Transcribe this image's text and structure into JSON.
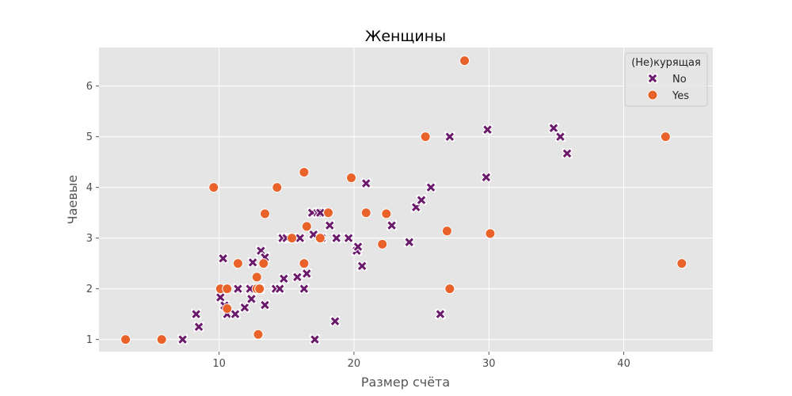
{
  "chart_data": {
    "type": "scatter",
    "title": "Женщины",
    "xlabel": "Размер счёта",
    "ylabel": "Чаевые",
    "xlim": [
      1.1,
      46.6
    ],
    "ylim": [
      0.76,
      6.76
    ],
    "xticks": [
      10,
      20,
      30,
      40
    ],
    "yticks": [
      1,
      2,
      3,
      4,
      5,
      6
    ],
    "grid": true,
    "legend": {
      "title": "(Не)курящая",
      "placement": "top-right"
    },
    "series": [
      {
        "name": "No",
        "marker": "x",
        "color": "#6b1a6b",
        "points": [
          [
            7.3,
            1.0
          ],
          [
            8.3,
            1.5
          ],
          [
            8.5,
            1.25
          ],
          [
            10.1,
            1.83
          ],
          [
            10.3,
            2.6
          ],
          [
            10.4,
            1.67
          ],
          [
            10.6,
            1.5
          ],
          [
            11.2,
            1.5
          ],
          [
            11.4,
            2.0
          ],
          [
            11.9,
            1.63
          ],
          [
            12.3,
            2.0
          ],
          [
            12.4,
            1.8
          ],
          [
            12.5,
            2.52
          ],
          [
            12.9,
            2.0
          ],
          [
            13.0,
            2.0
          ],
          [
            13.1,
            2.75
          ],
          [
            13.4,
            1.68
          ],
          [
            13.4,
            2.62
          ],
          [
            14.2,
            2.0
          ],
          [
            14.5,
            2.0
          ],
          [
            14.7,
            3.0
          ],
          [
            14.8,
            2.2
          ],
          [
            15.0,
            3.0
          ],
          [
            15.8,
            2.23
          ],
          [
            16.0,
            3.0
          ],
          [
            16.3,
            2.0
          ],
          [
            16.5,
            2.3
          ],
          [
            16.9,
            3.5
          ],
          [
            17.0,
            3.07
          ],
          [
            17.1,
            1.0
          ],
          [
            17.3,
            3.5
          ],
          [
            17.5,
            3.5
          ],
          [
            17.6,
            3.0
          ],
          [
            18.2,
            3.25
          ],
          [
            18.6,
            1.36
          ],
          [
            18.7,
            3.0
          ],
          [
            19.6,
            3.0
          ],
          [
            20.2,
            2.75
          ],
          [
            20.3,
            2.83
          ],
          [
            20.6,
            2.45
          ],
          [
            20.9,
            4.08
          ],
          [
            22.8,
            3.25
          ],
          [
            24.1,
            2.92
          ],
          [
            24.6,
            3.61
          ],
          [
            25.0,
            3.75
          ],
          [
            25.7,
            4.0
          ],
          [
            26.4,
            1.5
          ],
          [
            27.1,
            5.0
          ],
          [
            29.8,
            4.2
          ],
          [
            29.9,
            5.14
          ],
          [
            34.8,
            5.17
          ],
          [
            35.3,
            5.0
          ],
          [
            35.8,
            4.67
          ]
        ]
      },
      {
        "name": "Yes",
        "marker": "o",
        "color": "#e8622a",
        "points": [
          [
            3.07,
            1.0
          ],
          [
            5.75,
            1.0
          ],
          [
            9.6,
            4.0
          ],
          [
            10.1,
            2.0
          ],
          [
            10.6,
            1.61
          ],
          [
            10.6,
            2.0
          ],
          [
            11.4,
            2.5
          ],
          [
            12.8,
            2.0
          ],
          [
            12.8,
            2.23
          ],
          [
            12.9,
            1.1
          ],
          [
            13.0,
            2.0
          ],
          [
            13.3,
            2.5
          ],
          [
            13.4,
            3.48
          ],
          [
            14.3,
            4.0
          ],
          [
            15.4,
            3.0
          ],
          [
            16.3,
            2.5
          ],
          [
            16.3,
            4.3
          ],
          [
            16.5,
            3.23
          ],
          [
            17.5,
            3.0
          ],
          [
            18.1,
            3.5
          ],
          [
            19.8,
            4.19
          ],
          [
            20.9,
            3.5
          ],
          [
            22.1,
            2.88
          ],
          [
            22.4,
            3.48
          ],
          [
            25.3,
            5.0
          ],
          [
            26.9,
            3.14
          ],
          [
            27.1,
            2.0
          ],
          [
            28.2,
            6.5
          ],
          [
            30.1,
            3.09
          ],
          [
            43.1,
            5.0
          ],
          [
            44.3,
            2.5
          ]
        ]
      }
    ]
  }
}
